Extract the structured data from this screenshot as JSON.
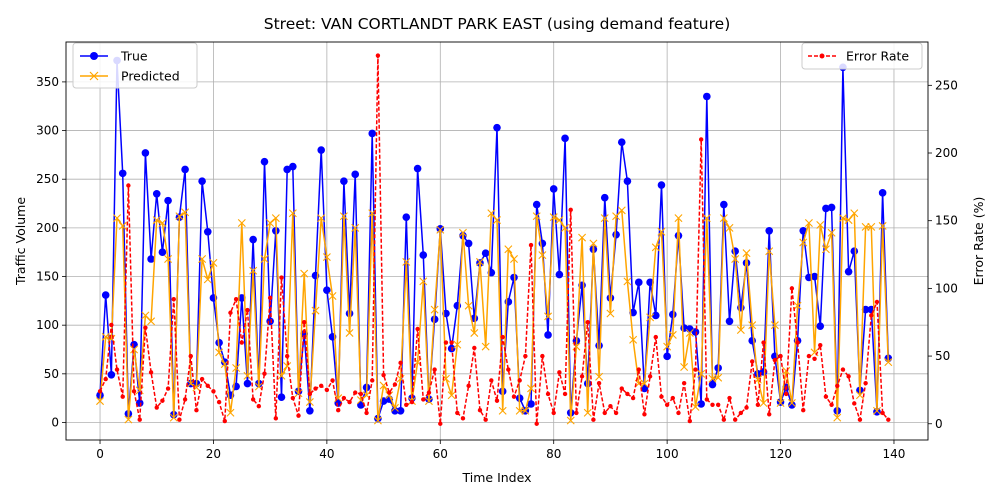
{
  "chart_data": {
    "type": "line",
    "title": "Street: VAN CORTLANDT PARK EAST (using demand feature)",
    "xlabel": "Time Index",
    "ylabel": "Traffic Volume",
    "y2label": "Error Rate (%)",
    "xlim": [
      -6,
      146
    ],
    "ylim": [
      -18,
      391
    ],
    "y2lim": [
      -12,
      282
    ],
    "xticks": [
      0,
      20,
      40,
      60,
      80,
      100,
      120,
      140
    ],
    "yticks": [
      0,
      50,
      100,
      150,
      200,
      250,
      300,
      350
    ],
    "y2ticks": [
      0,
      50,
      100,
      150,
      200,
      250
    ],
    "grid": true,
    "legend_left_placement": "top-left",
    "legend_right_placement": "top-right",
    "series": [
      {
        "name": "True",
        "axis": "left",
        "color": "#0000ff",
        "marker": "circle",
        "x": [
          0,
          1,
          2,
          3,
          4,
          5,
          6,
          7,
          8,
          9,
          10,
          11,
          12,
          13,
          14,
          15,
          16,
          17,
          18,
          19,
          20,
          21,
          22,
          23,
          24,
          25,
          26,
          27,
          28,
          29,
          30,
          31,
          32,
          33,
          34,
          35,
          36,
          37,
          38,
          39,
          40,
          41,
          42,
          43,
          44,
          45,
          46,
          47,
          48,
          49,
          50,
          51,
          52,
          53,
          54,
          55,
          56,
          57,
          58,
          59,
          60,
          61,
          62,
          63,
          64,
          65,
          66,
          67,
          68,
          69,
          70,
          71,
          72,
          73,
          74,
          75,
          76,
          77,
          78,
          79,
          80,
          81,
          82,
          83,
          84,
          85,
          86,
          87,
          88,
          89,
          90,
          91,
          92,
          93,
          94,
          95,
          96,
          97,
          98,
          99,
          100,
          101,
          102,
          103,
          104,
          105,
          106,
          107,
          108,
          109,
          110,
          111,
          112,
          113,
          114,
          115,
          116,
          117,
          118,
          119,
          120,
          121,
          122,
          123,
          124,
          125,
          126,
          127,
          128,
          129,
          130,
          131,
          132,
          133,
          134,
          135,
          136,
          137,
          138,
          139
        ],
        "values": [
          28,
          131,
          49,
          372,
          256,
          9,
          80,
          20,
          277,
          168,
          235,
          175,
          228,
          8,
          211,
          260,
          40,
          40,
          248,
          196,
          128,
          82,
          62,
          28,
          37,
          128,
          40,
          188,
          40,
          268,
          104,
          197,
          26,
          260,
          263,
          32,
          91,
          12,
          151,
          280,
          136,
          88,
          20,
          248,
          112,
          255,
          18,
          36,
          297,
          4,
          22,
          24,
          12,
          12,
          211,
          25,
          261,
          172,
          24,
          106,
          199,
          112,
          76,
          120,
          192,
          184,
          107,
          164,
          174,
          154,
          303,
          32,
          124,
          149,
          25,
          12,
          19,
          224,
          184,
          90,
          240,
          152,
          292,
          10,
          84,
          141,
          40,
          178,
          79,
          231,
          128,
          193,
          288,
          248,
          113,
          144,
          35,
          144,
          110,
          244,
          68,
          111,
          192,
          97,
          96,
          93,
          19,
          335,
          39,
          56,
          224,
          104,
          176,
          118,
          164,
          84,
          50,
          52,
          197,
          68,
          21,
          36,
          18,
          84,
          197,
          149,
          150,
          99,
          220,
          221,
          12,
          365,
          155,
          176,
          33,
          116,
          116,
          11,
          236,
          66
        ]
      },
      {
        "name": "Predicted",
        "axis": "left",
        "color": "#ffa500",
        "marker": "x",
        "x": [
          0,
          1,
          2,
          3,
          4,
          5,
          6,
          7,
          8,
          9,
          10,
          11,
          12,
          13,
          14,
          15,
          16,
          17,
          18,
          19,
          20,
          21,
          22,
          23,
          24,
          25,
          26,
          27,
          28,
          29,
          30,
          31,
          32,
          33,
          34,
          35,
          36,
          37,
          38,
          39,
          40,
          41,
          42,
          43,
          44,
          45,
          46,
          47,
          48,
          49,
          50,
          51,
          52,
          53,
          54,
          55,
          56,
          57,
          58,
          59,
          60,
          61,
          62,
          63,
          64,
          65,
          66,
          67,
          68,
          69,
          70,
          71,
          72,
          73,
          74,
          75,
          76,
          77,
          78,
          79,
          80,
          81,
          82,
          83,
          84,
          85,
          86,
          87,
          88,
          89,
          90,
          91,
          92,
          93,
          94,
          95,
          96,
          97,
          98,
          99,
          100,
          101,
          102,
          103,
          104,
          105,
          106,
          107,
          108,
          109,
          110,
          111,
          112,
          113,
          114,
          115,
          116,
          117,
          118,
          119,
          120,
          121,
          122,
          123,
          124,
          125,
          126,
          127,
          128,
          129,
          130,
          131,
          132,
          133,
          134,
          135,
          136,
          137,
          138,
          139
        ],
        "values": [
          22,
          88,
          86,
          210,
          202,
          3,
          75,
          33,
          110,
          104,
          208,
          205,
          168,
          5,
          212,
          216,
          40,
          36,
          168,
          147,
          164,
          72,
          60,
          10,
          56,
          205,
          48,
          156,
          37,
          168,
          205,
          210,
          48,
          58,
          215,
          30,
          153,
          21,
          115,
          210,
          170,
          130,
          25,
          212,
          92,
          200,
          23,
          28,
          215,
          2,
          38,
          28,
          15,
          45,
          165,
          22,
          62,
          145,
          22,
          116,
          198,
          45,
          28,
          80,
          195,
          120,
          92,
          165,
          78,
          215,
          208,
          12,
          178,
          168,
          12,
          12,
          35,
          212,
          172,
          109,
          211,
          208,
          200,
          2,
          78,
          190,
          10,
          184,
          47,
          210,
          112,
          212,
          218,
          145,
          85,
          40,
          40,
          108,
          180,
          196,
          78,
          90,
          210,
          57,
          92,
          16,
          50,
          210,
          45,
          46,
          210,
          200,
          168,
          95,
          174,
          100,
          44,
          20,
          176,
          100,
          20,
          53,
          20,
          120,
          185,
          205,
          72,
          203,
          178,
          195,
          5,
          210,
          208,
          215,
          28,
          201,
          201,
          12,
          202,
          62
        ]
      },
      {
        "name": "Error Rate",
        "axis": "right",
        "color": "#ff0000",
        "marker": "dot",
        "dashed": true,
        "x": [
          0,
          1,
          2,
          3,
          4,
          5,
          6,
          7,
          8,
          9,
          10,
          11,
          12,
          13,
          14,
          15,
          16,
          17,
          18,
          19,
          20,
          21,
          22,
          23,
          24,
          25,
          26,
          27,
          28,
          29,
          30,
          31,
          32,
          33,
          34,
          35,
          36,
          37,
          38,
          39,
          40,
          41,
          42,
          43,
          44,
          45,
          46,
          47,
          48,
          49,
          50,
          51,
          52,
          53,
          54,
          55,
          56,
          57,
          58,
          59,
          60,
          61,
          62,
          63,
          64,
          65,
          66,
          67,
          68,
          69,
          70,
          71,
          72,
          73,
          74,
          75,
          76,
          77,
          78,
          79,
          80,
          81,
          82,
          83,
          84,
          85,
          86,
          87,
          88,
          89,
          90,
          91,
          92,
          93,
          94,
          95,
          96,
          97,
          98,
          99,
          100,
          101,
          102,
          103,
          104,
          105,
          106,
          107,
          108,
          109,
          110,
          111,
          112,
          113,
          114,
          115,
          116,
          117,
          118,
          119,
          120,
          121,
          122,
          123,
          124,
          125,
          126,
          127,
          128,
          129,
          130,
          131,
          132,
          133,
          134,
          135,
          136,
          137,
          138,
          139
        ],
        "values": [
          24,
          33,
          73,
          40,
          20,
          176,
          24,
          3,
          71,
          38,
          12,
          17,
          26,
          92,
          3,
          18,
          50,
          10,
          33,
          28,
          24,
          16,
          2,
          82,
          92,
          60,
          84,
          18,
          13,
          37,
          93,
          4,
          108,
          50,
          19,
          6,
          75,
          22,
          26,
          28,
          25,
          32,
          10,
          19,
          16,
          23,
          22,
          8,
          32,
          272,
          36,
          23,
          29,
          45,
          14,
          16,
          70,
          18,
          23,
          40,
          0,
          60,
          60,
          8,
          4,
          28,
          56,
          10,
          3,
          32,
          17,
          64,
          40,
          20,
          32,
          50,
          132,
          0,
          50,
          22,
          8,
          38,
          22,
          158,
          8,
          35,
          75,
          3,
          30,
          8,
          13,
          8,
          26,
          22,
          19,
          40,
          7,
          35,
          64,
          20,
          14,
          19,
          8,
          30,
          2,
          40,
          210,
          18,
          14,
          14,
          3,
          19,
          3,
          8,
          12,
          46,
          14,
          60,
          7,
          47,
          50,
          22,
          100,
          60,
          10,
          50,
          48,
          58,
          20,
          14,
          28,
          40,
          35,
          15,
          3,
          30,
          80,
          90,
          8,
          3
        ]
      }
    ]
  }
}
